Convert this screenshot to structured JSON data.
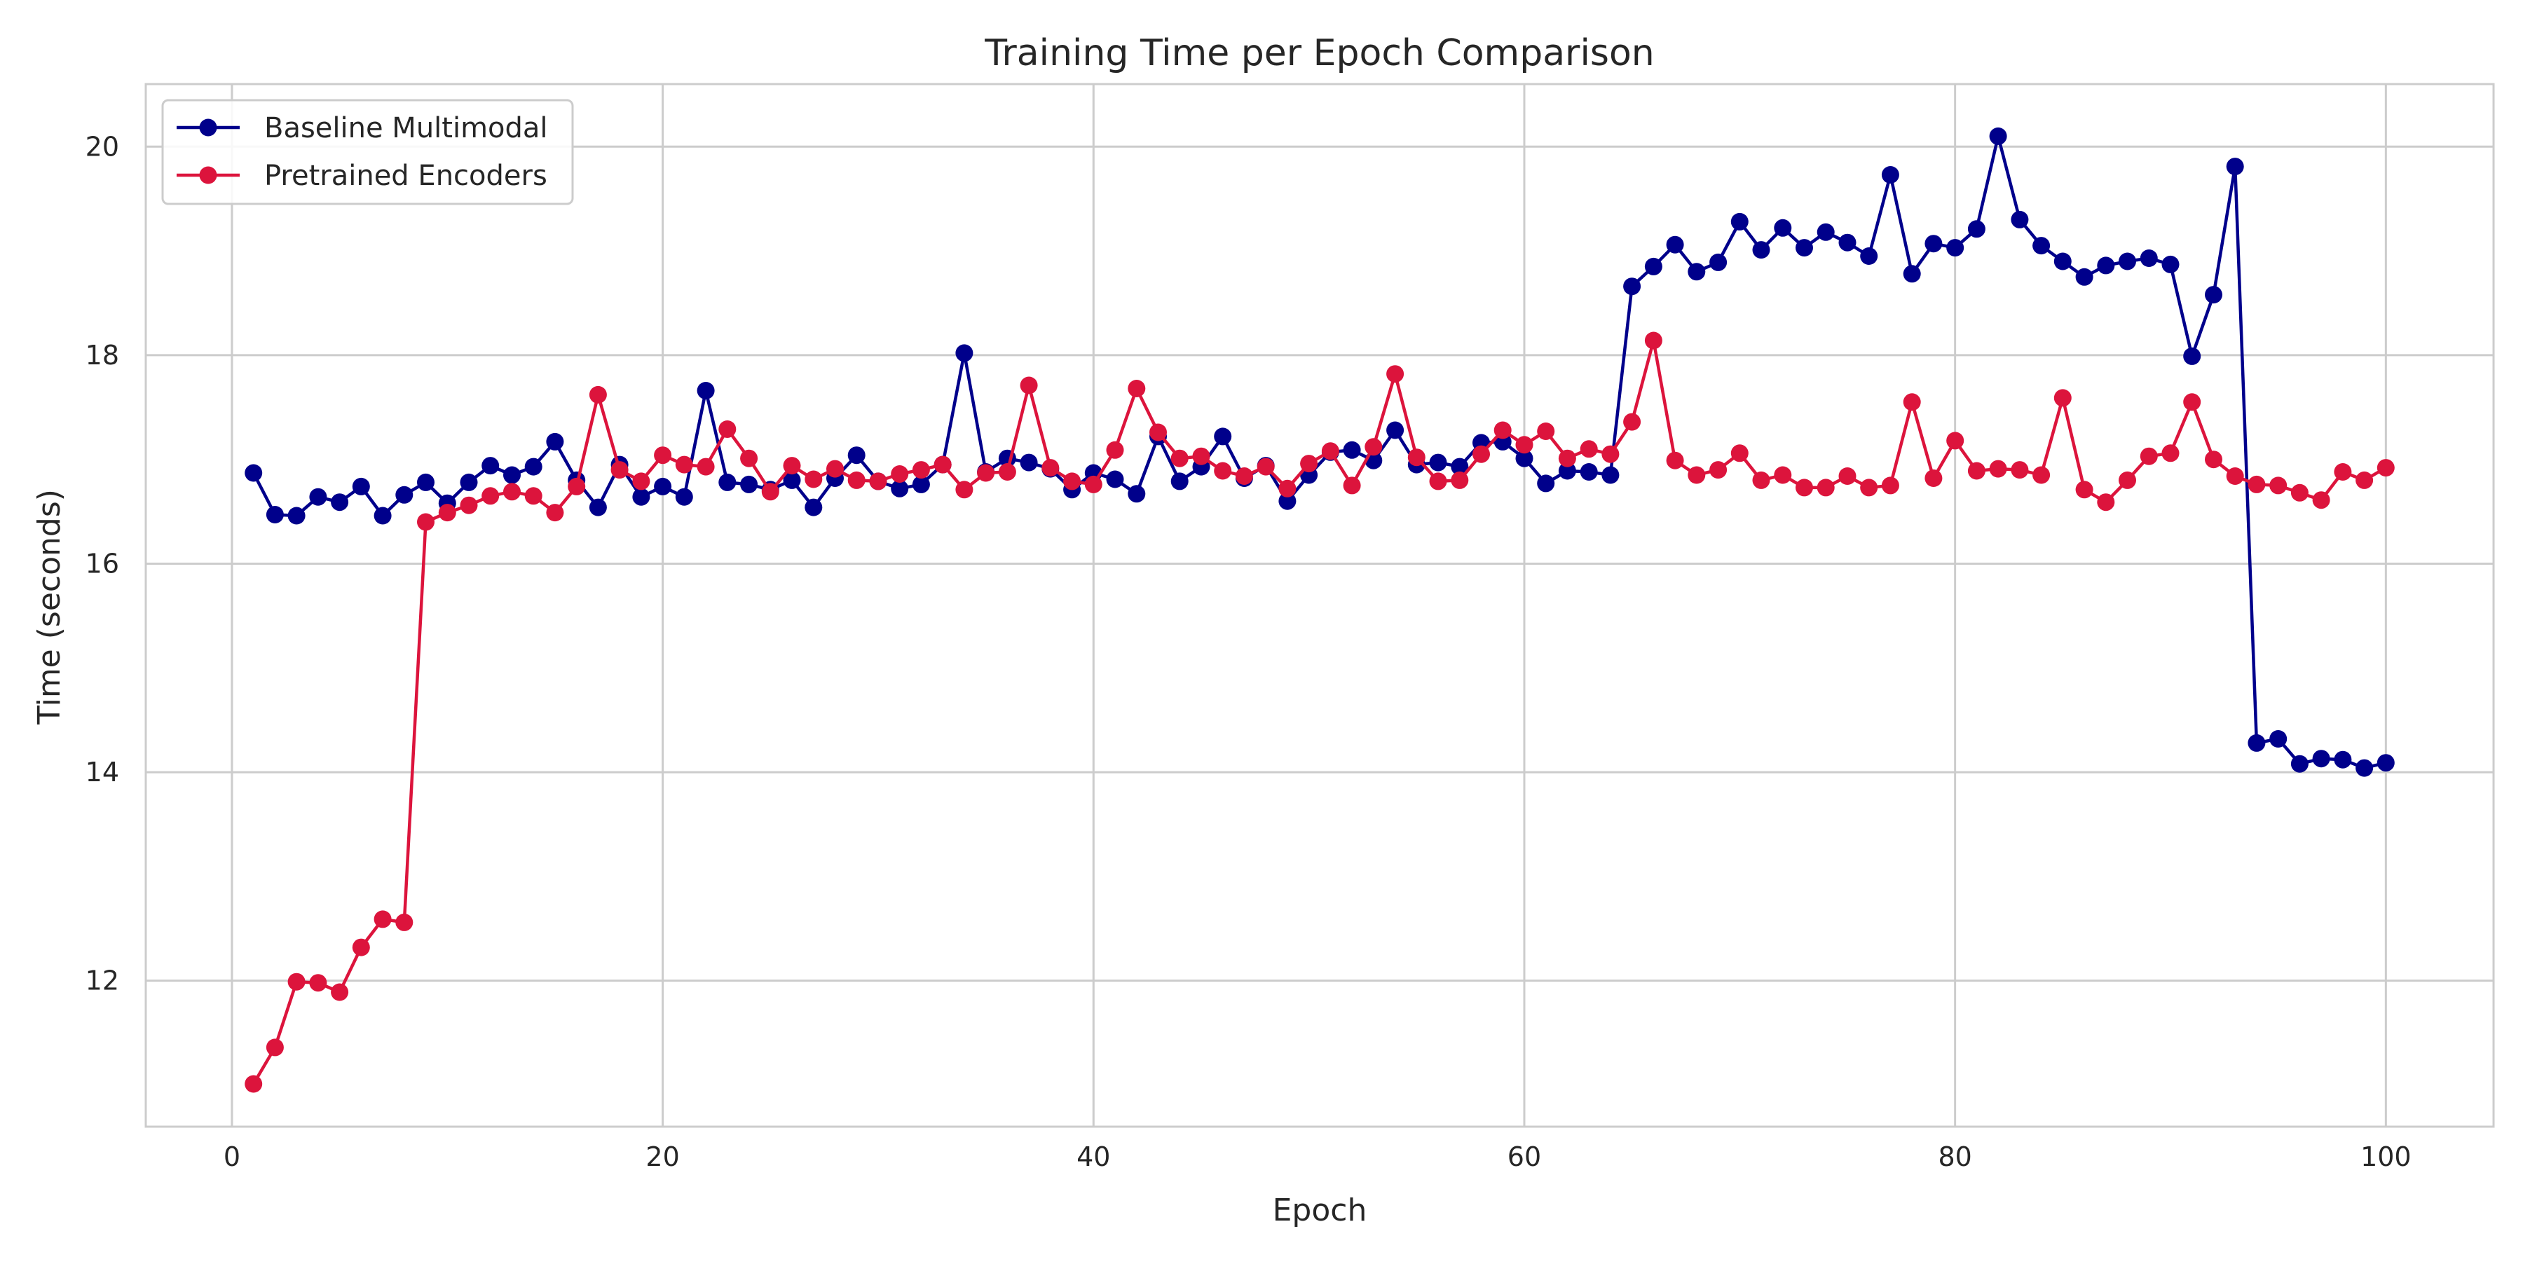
{
  "chart_data": {
    "type": "line",
    "title": "Training Time per Epoch Comparison",
    "xlabel": "Epoch",
    "ylabel": "Time (seconds)",
    "xlim": [
      -4,
      105
    ],
    "ylim": [
      10.6,
      20.6
    ],
    "xticks": [
      0,
      20,
      40,
      60,
      80,
      100
    ],
    "yticks": [
      12,
      14,
      16,
      18,
      20
    ],
    "grid": true,
    "legend_position": "upper-left",
    "x": [
      1,
      2,
      3,
      4,
      5,
      6,
      7,
      8,
      9,
      10,
      11,
      12,
      13,
      14,
      15,
      16,
      17,
      18,
      19,
      20,
      21,
      22,
      23,
      24,
      25,
      26,
      27,
      28,
      29,
      30,
      31,
      32,
      33,
      34,
      35,
      36,
      37,
      38,
      39,
      40,
      41,
      42,
      43,
      44,
      45,
      46,
      47,
      48,
      49,
      50,
      51,
      52,
      53,
      54,
      55,
      56,
      57,
      58,
      59,
      60,
      61,
      62,
      63,
      64,
      65,
      66,
      67,
      68,
      69,
      70,
      71,
      72,
      73,
      74,
      75,
      76,
      77,
      78,
      79,
      80,
      81,
      82,
      83,
      84,
      85,
      86,
      87,
      88,
      89,
      90,
      91,
      92,
      93,
      94,
      95,
      96,
      97,
      98,
      99,
      100
    ],
    "series": [
      {
        "name": "Baseline Multimodal",
        "color": "#00008b",
        "marker": "circle",
        "values": [
          16.87,
          16.47,
          16.46,
          16.64,
          16.59,
          16.74,
          16.46,
          16.66,
          16.78,
          16.58,
          16.78,
          16.94,
          16.85,
          16.93,
          17.17,
          16.8,
          16.54,
          16.95,
          16.64,
          16.74,
          16.64,
          17.66,
          16.78,
          16.76,
          16.71,
          16.8,
          16.54,
          16.82,
          17.04,
          16.79,
          16.72,
          16.76,
          16.95,
          18.02,
          16.88,
          17.01,
          16.97,
          16.91,
          16.71,
          16.87,
          16.81,
          16.67,
          17.22,
          16.79,
          16.93,
          17.22,
          16.82,
          16.94,
          16.6,
          16.85,
          17.07,
          17.09,
          16.99,
          17.28,
          16.95,
          16.97,
          16.93,
          17.16,
          17.17,
          17.01,
          16.77,
          16.89,
          16.88,
          16.85,
          18.66,
          18.85,
          19.06,
          18.8,
          18.89,
          19.28,
          19.01,
          19.22,
          19.03,
          19.18,
          19.08,
          18.95,
          19.73,
          18.78,
          19.07,
          19.03,
          19.21,
          20.1,
          19.3,
          19.05,
          18.9,
          18.75,
          18.86,
          18.9,
          18.93,
          18.87,
          17.99,
          18.58,
          19.81,
          14.28,
          14.32,
          14.08,
          14.13,
          14.12,
          14.04,
          14.09
        ]
      },
      {
        "name": "Pretrained Encoders",
        "color": "#dc143c",
        "marker": "circle",
        "values": [
          11.01,
          11.36,
          11.99,
          11.98,
          11.89,
          12.32,
          12.59,
          12.56,
          16.4,
          16.49,
          16.56,
          16.65,
          16.69,
          16.65,
          16.49,
          16.74,
          17.62,
          16.9,
          16.79,
          17.04,
          16.95,
          16.93,
          17.29,
          17.01,
          16.69,
          16.94,
          16.81,
          16.91,
          16.8,
          16.79,
          16.86,
          16.9,
          16.95,
          16.71,
          16.87,
          16.88,
          17.71,
          16.92,
          16.79,
          16.76,
          17.09,
          17.68,
          17.26,
          17.01,
          17.03,
          16.89,
          16.84,
          16.93,
          16.72,
          16.96,
          17.08,
          16.75,
          17.12,
          17.82,
          17.02,
          16.79,
          16.8,
          17.05,
          17.28,
          17.14,
          17.27,
          17.01,
          17.1,
          17.05,
          17.36,
          18.14,
          16.99,
          16.85,
          16.9,
          17.06,
          16.8,
          16.85,
          16.73,
          16.73,
          16.84,
          16.73,
          16.75,
          17.55,
          16.82,
          17.18,
          16.89,
          16.91,
          16.9,
          16.85,
          17.59,
          16.71,
          16.59,
          16.8,
          17.03,
          17.06,
          17.55,
          17.0,
          16.84,
          16.76,
          16.75,
          16.68,
          16.61,
          16.88,
          16.8,
          16.92
        ]
      }
    ]
  }
}
